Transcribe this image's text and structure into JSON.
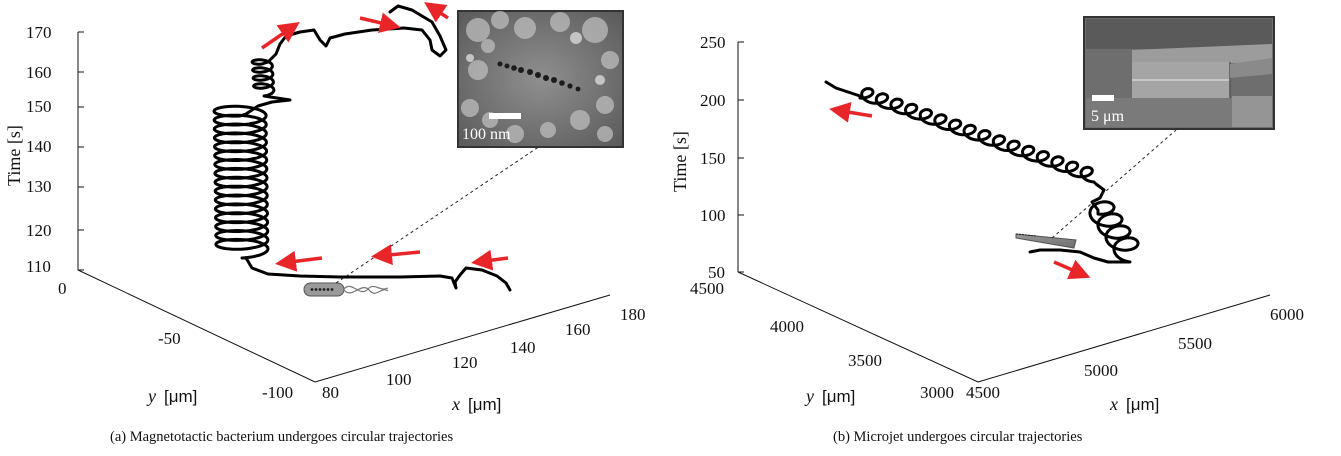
{
  "chart_data": [
    {
      "type": "line3d",
      "caption": "(a) Magnetotactic bacterium undergoes circular trajectories",
      "zlabel": "Time [s]",
      "ylabel_var": "y",
      "ylabel_unit": "[μm]",
      "xlabel_var": "x",
      "xlabel_unit": "[μm]",
      "z_ticks": [
        "110",
        "120",
        "130",
        "140",
        "150",
        "160",
        "170"
      ],
      "y_ticks": [
        "0",
        "-50",
        "-100"
      ],
      "x_ticks": [
        "80",
        "100",
        "120",
        "140",
        "160",
        "180"
      ],
      "z_range": [
        110,
        170
      ],
      "y_range": [
        -100,
        0
      ],
      "x_range": [
        80,
        180
      ],
      "inset_scale_label": "100 nm",
      "arrow_color": "#e8262a",
      "line_color": "#000000"
    },
    {
      "type": "line3d",
      "caption": "(b) Microjet undergoes circular trajectories",
      "zlabel": "Time [s]",
      "ylabel_var": "y",
      "ylabel_unit": "[μm]",
      "xlabel_var": "x",
      "xlabel_unit": "[μm]",
      "z_ticks": [
        "50",
        "100",
        "150",
        "200",
        "250"
      ],
      "y_ticks": [
        "4500",
        "4000",
        "3500",
        "3000"
      ],
      "x_ticks": [
        "4500",
        "5000",
        "5500",
        "6000"
      ],
      "z_range": [
        50,
        250
      ],
      "y_range": [
        3000,
        4500
      ],
      "x_range": [
        4500,
        6000
      ],
      "inset_scale_label": "5 μm",
      "arrow_color": "#e8262a",
      "line_color": "#000000"
    }
  ]
}
